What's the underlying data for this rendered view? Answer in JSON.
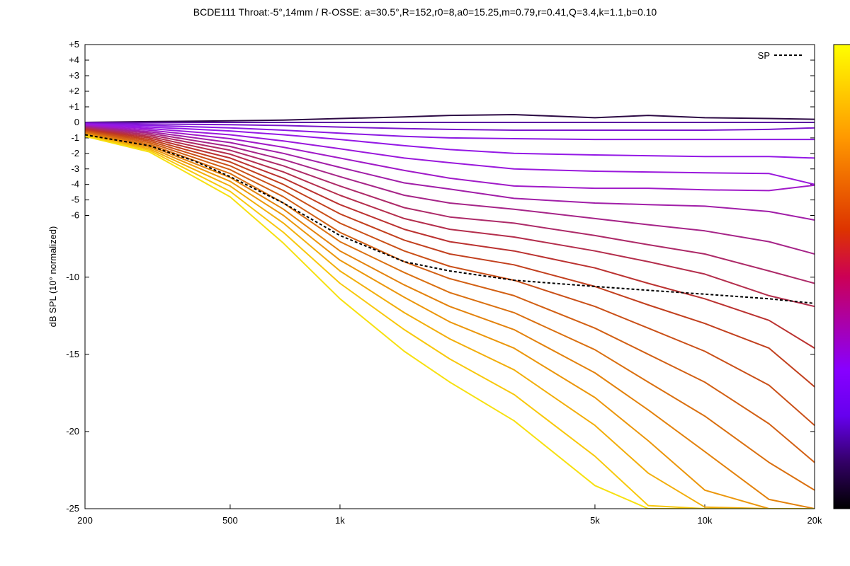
{
  "chart_data": {
    "type": "line",
    "title": "BCDE111 Throat:-5°,14mm  / R-OSSE: a=30.5°,R=152,r0=8,a0=15.25,m=0.79,r=0.41,Q=3.4,k=1.1,b=0.10",
    "ylabel": "dB SPL (10° normalized)",
    "xlabel": "",
    "x_scale": "log",
    "xlim": [
      200,
      20000
    ],
    "ylim": [
      -25,
      5
    ],
    "grid": false,
    "legend_position": "top-right",
    "x_ticks": [
      {
        "value": 200,
        "label": "200"
      },
      {
        "value": 500,
        "label": "500"
      },
      {
        "value": 1000,
        "label": "1k"
      },
      {
        "value": 5000,
        "label": "5k"
      },
      {
        "value": 10000,
        "label": "10k"
      },
      {
        "value": 20000,
        "label": "20k"
      }
    ],
    "y_ticks_major": [
      {
        "value": -25,
        "label": "-25"
      },
      {
        "value": -20,
        "label": "-20"
      },
      {
        "value": -15,
        "label": "-15"
      },
      {
        "value": -10,
        "label": "-10"
      }
    ],
    "y_ticks_minor": [
      {
        "value": -6,
        "label": "-6"
      },
      {
        "value": -5,
        "label": "-5"
      },
      {
        "value": -4,
        "label": "-4"
      },
      {
        "value": -3,
        "label": "-3"
      },
      {
        "value": -2,
        "label": "-2"
      },
      {
        "value": -1,
        "label": "-1"
      },
      {
        "value": 0,
        "label": "0"
      },
      {
        "value": 1,
        "label": "+1"
      },
      {
        "value": 2,
        "label": "+2"
      },
      {
        "value": 3,
        "label": "+3"
      },
      {
        "value": 4,
        "label": "+4"
      },
      {
        "value": 5,
        "label": "+5"
      }
    ],
    "x": [
      200,
      300,
      500,
      700,
      1000,
      1500,
      2000,
      3000,
      5000,
      7000,
      10000,
      15000,
      20000
    ],
    "series": [
      {
        "color": "#2d0a45",
        "values": [
          0.0,
          0.05,
          0.1,
          0.15,
          0.25,
          0.35,
          0.45,
          0.5,
          0.3,
          0.45,
          0.3,
          0.25,
          0.2
        ]
      },
      {
        "color": "#5a12a0",
        "values": [
          0.0,
          0.0,
          0.0,
          0.0,
          0.0,
          0.0,
          0.0,
          0.0,
          0.0,
          0.0,
          0.0,
          0.0,
          0.0
        ]
      },
      {
        "color": "#7a16cc",
        "values": [
          -0.05,
          -0.1,
          -0.15,
          -0.2,
          -0.3,
          -0.4,
          -0.45,
          -0.5,
          -0.5,
          -0.5,
          -0.5,
          -0.45,
          -0.35
        ]
      },
      {
        "color": "#8b18e2",
        "values": [
          -0.1,
          -0.2,
          -0.35,
          -0.5,
          -0.7,
          -0.9,
          -1.0,
          -1.05,
          -1.1,
          -1.1,
          -1.1,
          -1.1,
          -1.1
        ]
      },
      {
        "color": "#9418e6",
        "values": [
          -0.1,
          -0.3,
          -0.55,
          -0.8,
          -1.1,
          -1.5,
          -1.75,
          -2.0,
          -2.1,
          -2.15,
          -2.2,
          -2.2,
          -2.3
        ]
      },
      {
        "color": "#9a18dc",
        "values": [
          -0.15,
          -0.4,
          -0.8,
          -1.2,
          -1.7,
          -2.3,
          -2.6,
          -3.0,
          -3.15,
          -3.2,
          -3.25,
          -3.3,
          -4.0
        ]
      },
      {
        "color": "#a01ac8",
        "values": [
          -0.2,
          -0.5,
          -1.05,
          -1.6,
          -2.3,
          -3.1,
          -3.6,
          -4.1,
          -4.25,
          -4.25,
          -4.35,
          -4.4,
          -4.05
        ]
      },
      {
        "color": "#a11ea8",
        "values": [
          -0.25,
          -0.6,
          -1.3,
          -2.0,
          -2.9,
          -3.9,
          -4.3,
          -4.9,
          -5.2,
          -5.3,
          -5.4,
          -5.75,
          -6.3
        ]
      },
      {
        "color": "#a62488",
        "values": [
          -0.3,
          -0.7,
          -1.55,
          -2.4,
          -3.5,
          -4.7,
          -5.2,
          -5.6,
          -6.2,
          -6.6,
          -7.0,
          -7.7,
          -8.5
        ]
      },
      {
        "color": "#ad2a68",
        "values": [
          -0.35,
          -0.8,
          -1.8,
          -2.8,
          -4.1,
          -5.5,
          -6.1,
          -6.5,
          -7.3,
          -7.9,
          -8.5,
          -9.6,
          -10.4
        ]
      },
      {
        "color": "#b42e4c",
        "values": [
          -0.4,
          -0.9,
          -2.05,
          -3.2,
          -4.7,
          -6.2,
          -6.9,
          -7.4,
          -8.3,
          -9.0,
          -9.8,
          -11.2,
          -11.9
        ]
      },
      {
        "color": "#bb3230",
        "values": [
          -0.45,
          -1.0,
          -2.3,
          -3.6,
          -5.3,
          -6.9,
          -7.7,
          -8.3,
          -9.4,
          -10.4,
          -11.4,
          -12.8,
          -14.6
        ]
      },
      {
        "color": "#c2401e",
        "values": [
          -0.5,
          -1.1,
          -2.55,
          -4.0,
          -5.9,
          -7.6,
          -8.5,
          -9.2,
          -10.6,
          -11.8,
          -13.0,
          -14.6,
          -17.1
        ]
      },
      {
        "color": "#ca5018",
        "values": [
          -0.55,
          -1.2,
          -2.8,
          -4.4,
          -6.5,
          -8.3,
          -9.3,
          -10.2,
          -11.9,
          -13.3,
          -14.8,
          -17.0,
          -19.6
        ]
      },
      {
        "color": "#d26014",
        "values": [
          -0.6,
          -1.3,
          -3.05,
          -4.8,
          -7.1,
          -9.0,
          -10.1,
          -11.2,
          -13.3,
          -15.0,
          -16.8,
          -19.5,
          -22.0
        ]
      },
      {
        "color": "#da7010",
        "values": [
          -0.65,
          -1.4,
          -3.3,
          -5.2,
          -7.7,
          -9.7,
          -11.0,
          -12.3,
          -14.7,
          -16.8,
          -19.0,
          -22.0,
          -23.8
        ]
      },
      {
        "color": "#e3820c",
        "values": [
          -0.7,
          -1.5,
          -3.55,
          -5.6,
          -8.3,
          -10.5,
          -11.9,
          -13.4,
          -16.2,
          -18.6,
          -21.3,
          -24.4,
          -25.0
        ]
      },
      {
        "color": "#eb960a",
        "values": [
          -0.75,
          -1.6,
          -3.8,
          -6.0,
          -8.9,
          -11.3,
          -12.9,
          -14.6,
          -17.8,
          -20.6,
          -23.8,
          -25.0,
          -25.0
        ]
      },
      {
        "color": "#f2ae0a",
        "values": [
          -0.8,
          -1.7,
          -4.1,
          -6.5,
          -9.6,
          -12.3,
          -14.0,
          -16.0,
          -19.6,
          -22.7,
          -24.9,
          -25.0,
          -25.0
        ]
      },
      {
        "color": "#f8c80c",
        "values": [
          -0.85,
          -1.8,
          -4.45,
          -7.1,
          -10.4,
          -13.4,
          -15.3,
          -17.6,
          -21.6,
          -24.8,
          -25.0,
          -25.0,
          -25.0
        ]
      },
      {
        "color": "#f7e010",
        "values": [
          -0.9,
          -1.9,
          -4.8,
          -7.8,
          -11.4,
          -14.8,
          -16.8,
          -19.3,
          -23.5,
          -25.0,
          -25.0,
          -25.0,
          -25.0
        ]
      }
    ],
    "sp": {
      "name": "SP",
      "color": "#000000",
      "x": [
        200,
        300,
        400,
        500,
        700,
        1000,
        1500,
        2000,
        3000,
        5000,
        7000,
        10000,
        15000,
        20000
      ],
      "values": [
        -0.8,
        -1.5,
        -2.5,
        -3.5,
        -5.2,
        -7.3,
        -9.0,
        -9.6,
        -10.2,
        -10.6,
        -10.85,
        -11.1,
        -11.4,
        -11.7
      ]
    },
    "colorbar": {
      "stops": [
        "#ffff00",
        "#ffcc00",
        "#ff9900",
        "#ee6600",
        "#dd3300",
        "#cc0055",
        "#aa00aa",
        "#8800ff",
        "#6600ee",
        "#330066",
        "#000000"
      ]
    }
  }
}
